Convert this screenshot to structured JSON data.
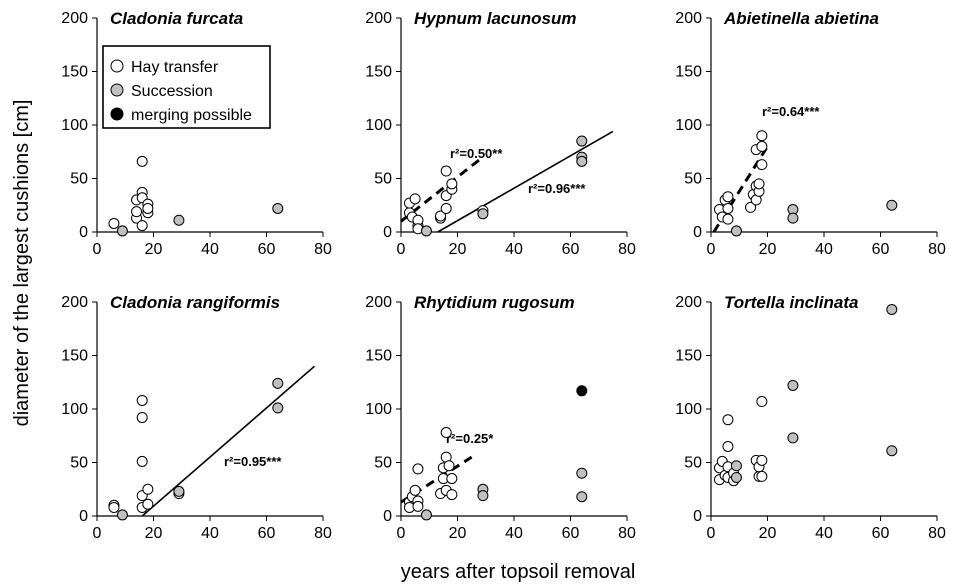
{
  "xlabel": "years after topsoil removal",
  "ylabel": "diameter of the largest cushions [cm]",
  "legend": {
    "placement": "top-left of first panel",
    "items": [
      {
        "label": "Hay transfer",
        "color": "#ffffff"
      },
      {
        "label": "Succession",
        "color": "#c0c0c0"
      },
      {
        "label": "merging possible",
        "color": "#000000"
      }
    ]
  },
  "colors": {
    "hay": "#ffffff",
    "succession": "#c0c0c0",
    "merging": "#000000",
    "stroke": "#000000"
  },
  "chart_data": [
    {
      "type": "scatter",
      "title": "Cladonia furcata",
      "xlim": [
        0,
        80
      ],
      "ylim": [
        0,
        200
      ],
      "xticks": [
        "0",
        "20",
        "40",
        "60",
        "80"
      ],
      "yticks": [
        "0",
        "50",
        "100",
        "150",
        "200"
      ],
      "series": [
        {
          "name": "Hay transfer",
          "points": [
            [
              6,
              8
            ],
            [
              14,
              13
            ],
            [
              14,
              19
            ],
            [
              14,
              30
            ],
            [
              16,
              6
            ],
            [
              16,
              37
            ],
            [
              16,
              66
            ],
            [
              16,
              32
            ],
            [
              18,
              18
            ],
            [
              18,
              26
            ],
            [
              18,
              22
            ]
          ]
        },
        {
          "name": "Succession",
          "points": [
            [
              9,
              1
            ],
            [
              29,
              11
            ],
            [
              64,
              22
            ]
          ]
        }
      ],
      "fits": []
    },
    {
      "type": "scatter",
      "title": "Hypnum lacunosum",
      "xlim": [
        0,
        80
      ],
      "ylim": [
        0,
        200
      ],
      "xticks": [
        "0",
        "20",
        "40",
        "60",
        "80"
      ],
      "yticks": [
        "0",
        "50",
        "100",
        "150",
        "200"
      ],
      "series": [
        {
          "name": "Hay transfer",
          "points": [
            [
              3,
              18
            ],
            [
              3,
              27
            ],
            [
              4,
              14
            ],
            [
              5,
              31
            ],
            [
              6,
              6
            ],
            [
              6,
              11
            ],
            [
              6,
              3
            ],
            [
              14,
              13
            ],
            [
              14,
              15
            ],
            [
              16,
              22
            ],
            [
              16,
              34
            ],
            [
              16,
              57
            ],
            [
              18,
              40
            ],
            [
              18,
              45
            ],
            [
              29,
              20
            ]
          ]
        },
        {
          "name": "Succession",
          "points": [
            [
              9,
              1
            ],
            [
              29,
              17
            ],
            [
              64,
              85
            ],
            [
              64,
              70
            ],
            [
              64,
              66
            ]
          ]
        }
      ],
      "fits": [
        {
          "label": "r²=0.50**",
          "style": "dashed",
          "x": [
            0,
            28
          ],
          "y": [
            10,
            68
          ]
        },
        {
          "label": "r²=0.96***",
          "style": "solid",
          "x": [
            13,
            75
          ],
          "y": [
            0,
            94
          ]
        }
      ]
    },
    {
      "type": "scatter",
      "title": "Abietinella abietina",
      "xlim": [
        0,
        80
      ],
      "ylim": [
        0,
        200
      ],
      "xticks": [
        "0",
        "20",
        "40",
        "60",
        "80"
      ],
      "yticks": [
        "0",
        "50",
        "100",
        "150",
        "200"
      ],
      "series": [
        {
          "name": "Hay transfer",
          "points": [
            [
              3,
              21
            ],
            [
              4,
              14
            ],
            [
              5,
              30
            ],
            [
              6,
              22
            ],
            [
              6,
              33
            ],
            [
              6,
              12
            ],
            [
              14,
              23
            ],
            [
              15,
              35
            ],
            [
              16,
              43
            ],
            [
              16,
              77
            ],
            [
              16,
              30
            ],
            [
              17,
              38
            ],
            [
              17,
              45
            ],
            [
              18,
              63
            ],
            [
              18,
              80
            ],
            [
              18,
              90
            ]
          ]
        },
        {
          "name": "Succession",
          "points": [
            [
              9,
              1
            ],
            [
              29,
              21
            ],
            [
              29,
              13
            ],
            [
              64,
              25
            ]
          ]
        }
      ],
      "fits": [
        {
          "label": "r²=0.64***",
          "style": "dashed",
          "x": [
            1,
            20
          ],
          "y": [
            0,
            80
          ]
        }
      ]
    },
    {
      "type": "scatter",
      "title": "Cladonia rangiformis",
      "xlim": [
        0,
        80
      ],
      "ylim": [
        0,
        200
      ],
      "xticks": [
        "0",
        "20",
        "40",
        "60",
        "80"
      ],
      "yticks": [
        "0",
        "50",
        "100",
        "150",
        "200"
      ],
      "series": [
        {
          "name": "Hay transfer",
          "points": [
            [
              6,
              10
            ],
            [
              6,
              8
            ],
            [
              16,
              108
            ],
            [
              16,
              92
            ],
            [
              16,
              51
            ],
            [
              16,
              19
            ],
            [
              16,
              8
            ],
            [
              18,
              25
            ],
            [
              18,
              11
            ],
            [
              29,
              21
            ]
          ]
        },
        {
          "name": "Succession",
          "points": [
            [
              9,
              1
            ],
            [
              29,
              23
            ],
            [
              64,
              124
            ],
            [
              64,
              101
            ]
          ]
        }
      ],
      "fits": [
        {
          "label": "r²=0.95***",
          "style": "solid",
          "x": [
            16,
            77
          ],
          "y": [
            0,
            140
          ]
        }
      ]
    },
    {
      "type": "scatter",
      "title": "Rhytidium rugosum",
      "xlim": [
        0,
        80
      ],
      "ylim": [
        0,
        200
      ],
      "xticks": [
        "0",
        "20",
        "40",
        "60",
        "80"
      ],
      "yticks": [
        "0",
        "50",
        "100",
        "150",
        "200"
      ],
      "series": [
        {
          "name": "Hay transfer",
          "points": [
            [
              3,
              13
            ],
            [
              3,
              8
            ],
            [
              4,
              18
            ],
            [
              5,
              24
            ],
            [
              6,
              44
            ],
            [
              6,
              14
            ],
            [
              6,
              9
            ],
            [
              14,
              21
            ],
            [
              15,
              35
            ],
            [
              15,
              45
            ],
            [
              16,
              55
            ],
            [
              16,
              78
            ],
            [
              16,
              24
            ],
            [
              17,
              47
            ],
            [
              18,
              35
            ],
            [
              18,
              20
            ]
          ]
        },
        {
          "name": "Succession",
          "points": [
            [
              9,
              1
            ],
            [
              29,
              25
            ],
            [
              29,
              19
            ],
            [
              64,
              40
            ],
            [
              64,
              18
            ]
          ]
        },
        {
          "name": "merging possible",
          "points": [
            [
              64,
              117
            ]
          ]
        }
      ],
      "fits": [
        {
          "label": "r²=0.25*",
          "style": "dashed",
          "x": [
            0,
            25
          ],
          "y": [
            13,
            55
          ]
        }
      ]
    },
    {
      "type": "scatter",
      "title": "Tortella inclinata",
      "xlim": [
        0,
        80
      ],
      "ylim": [
        0,
        200
      ],
      "xticks": [
        "0",
        "20",
        "40",
        "60",
        "80"
      ],
      "yticks": [
        "0",
        "50",
        "100",
        "150",
        "200"
      ],
      "series": [
        {
          "name": "Hay transfer",
          "points": [
            [
              3,
              45
            ],
            [
              3,
              34
            ],
            [
              4,
              51
            ],
            [
              5,
              38
            ],
            [
              6,
              90
            ],
            [
              6,
              65
            ],
            [
              6,
              46
            ],
            [
              6,
              36
            ],
            [
              8,
              33
            ],
            [
              8,
              40
            ],
            [
              16,
              52
            ],
            [
              17,
              37
            ],
            [
              17,
              46
            ],
            [
              18,
              107
            ],
            [
              18,
              37
            ],
            [
              18,
              52
            ]
          ]
        },
        {
          "name": "Succession",
          "points": [
            [
              9,
              36
            ],
            [
              9,
              47
            ],
            [
              29,
              122
            ],
            [
              29,
              73
            ],
            [
              64,
              193
            ],
            [
              64,
              61
            ]
          ]
        }
      ],
      "fits": []
    }
  ]
}
